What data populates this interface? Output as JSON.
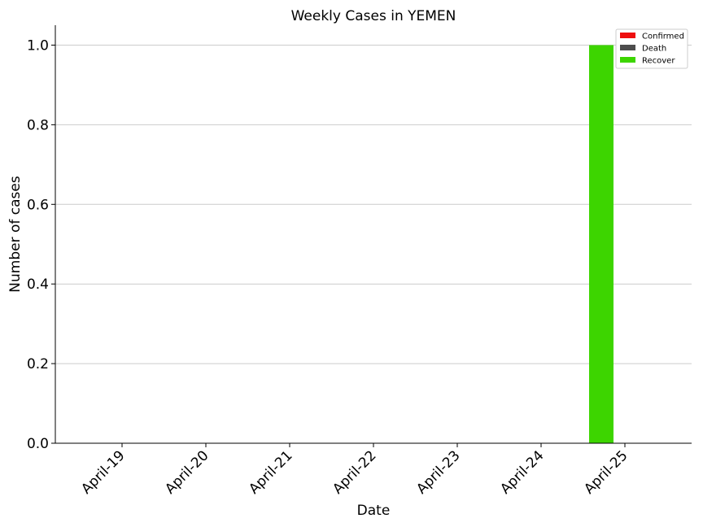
{
  "chart_data": {
    "type": "bar",
    "title": "Weekly Cases in YEMEN",
    "xlabel": "Date",
    "ylabel": "Number of cases",
    "categories": [
      "April-19",
      "April-20",
      "April-21",
      "April-22",
      "April-23",
      "April-24",
      "April-25"
    ],
    "ylim": [
      0,
      1.05
    ],
    "yticks": [
      "0.0",
      "0.2",
      "0.4",
      "0.6",
      "0.8",
      "1.0"
    ],
    "grid": "horizontal",
    "legend_position": "top-right",
    "series": [
      {
        "name": "Confirmed",
        "color": "#ee0e0e",
        "values": [
          0,
          0,
          0,
          0,
          0,
          0,
          0
        ]
      },
      {
        "name": "Death",
        "color": "#4d4d4d",
        "values": [
          0,
          0,
          0,
          0,
          0,
          0,
          0
        ]
      },
      {
        "name": "Recover",
        "color": "#3dd500",
        "values": [
          0,
          0,
          0,
          0,
          0,
          0,
          1
        ]
      }
    ]
  }
}
